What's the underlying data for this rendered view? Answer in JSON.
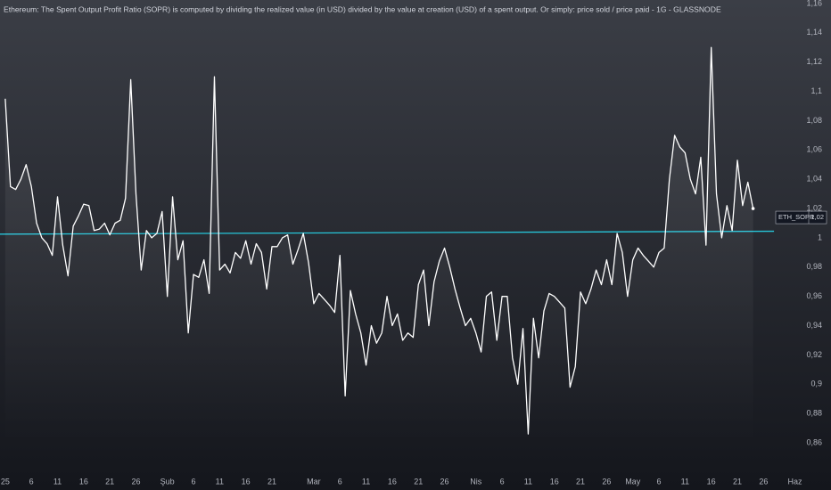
{
  "chart_data": {
    "type": "line",
    "title": "Ethereum: The Spent Output Profit Ratio (SOPR) is computed by dividing the realized value (in USD) divided by the value at creation (USD) of a spent output. Or simply: price sold / price paid - 1G - GLASSNODE",
    "x": [
      0,
      1,
      2,
      3,
      4,
      5,
      6,
      7,
      8,
      9,
      10,
      11,
      12,
      13,
      14,
      15,
      16,
      17,
      18,
      19,
      20,
      21,
      22,
      23,
      24,
      25,
      26,
      27,
      28,
      29,
      30,
      31,
      32,
      33,
      34,
      35,
      36,
      37,
      38,
      39,
      40,
      41,
      42,
      43,
      44,
      45,
      46,
      47,
      48,
      49,
      50,
      51,
      52,
      53,
      54,
      55,
      56,
      57,
      58,
      59,
      60,
      61,
      62,
      63,
      64,
      65,
      66,
      67,
      68,
      69,
      70,
      71,
      72,
      73,
      74,
      75,
      76,
      77,
      78,
      79,
      80,
      81,
      82,
      83,
      84,
      85,
      86,
      87,
      88,
      89,
      90,
      91,
      92,
      93,
      94,
      95,
      96,
      97,
      98,
      99,
      100,
      101,
      102,
      103,
      104,
      105,
      106,
      107,
      108,
      109,
      110,
      111,
      112,
      113,
      114,
      115,
      116,
      117,
      118,
      119,
      120,
      121,
      122,
      123,
      124,
      125,
      126,
      127,
      128,
      129,
      130,
      131,
      132,
      133,
      134,
      135,
      136,
      137,
      138,
      139,
      140,
      141,
      142,
      143
    ],
    "series": [
      {
        "name": "ETH_SOPR",
        "color": "#ffffff",
        "last_value_label": "1,02",
        "values": [
          1.095,
          1.035,
          1.033,
          1.04,
          1.05,
          1.035,
          1.01,
          1.0,
          0.996,
          0.988,
          1.028,
          0.995,
          0.974,
          1.008,
          1.015,
          1.023,
          1.022,
          1.005,
          1.006,
          1.01,
          1.002,
          1.01,
          1.012,
          1.027,
          1.108,
          1.03,
          0.978,
          1.005,
          1.0,
          1.003,
          1.018,
          0.96,
          1.028,
          0.985,
          0.998,
          0.935,
          0.975,
          0.973,
          0.985,
          0.962,
          1.11,
          0.978,
          0.982,
          0.976,
          0.99,
          0.986,
          0.998,
          0.982,
          0.996,
          0.99,
          0.965,
          0.994,
          0.994,
          1.0,
          1.002,
          0.982,
          0.992,
          1.003,
          0.983,
          0.955,
          0.962,
          0.958,
          0.954,
          0.949,
          0.988,
          0.892,
          0.964,
          0.948,
          0.935,
          0.913,
          0.94,
          0.928,
          0.935,
          0.96,
          0.94,
          0.948,
          0.93,
          0.935,
          0.932,
          0.968,
          0.978,
          0.94,
          0.97,
          0.984,
          0.993,
          0.98,
          0.965,
          0.952,
          0.94,
          0.945,
          0.935,
          0.922,
          0.96,
          0.963,
          0.93,
          0.96,
          0.96,
          0.918,
          0.9,
          0.938,
          0.866,
          0.945,
          0.918,
          0.95,
          0.962,
          0.96,
          0.956,
          0.952,
          0.898,
          0.912,
          0.963,
          0.955,
          0.965,
          0.978,
          0.968,
          0.985,
          0.968,
          1.003,
          0.99,
          0.96,
          0.985,
          0.993,
          0.988,
          0.984,
          0.98,
          0.99,
          0.993,
          1.04,
          1.07,
          1.062,
          1.058,
          1.04,
          1.03,
          1.055,
          0.995,
          1.13,
          1.03,
          1.0,
          1.022,
          1.005,
          1.053,
          1.022,
          1.038,
          1.02
        ]
      }
    ],
    "reference_line": {
      "x": [
        -1,
        147
      ],
      "values": [
        1.0025,
        1.0045
      ],
      "color": "#26c6da"
    },
    "xlim": [
      -1,
      157.9
    ],
    "xticks": [
      {
        "value": 0,
        "label": "25"
      },
      {
        "value": 5,
        "label": "6"
      },
      {
        "value": 10,
        "label": "11"
      },
      {
        "value": 15,
        "label": "16"
      },
      {
        "value": 20,
        "label": "21"
      },
      {
        "value": 25,
        "label": "26"
      },
      {
        "value": 31,
        "label": "Şub"
      },
      {
        "value": 36,
        "label": "6"
      },
      {
        "value": 41,
        "label": "11"
      },
      {
        "value": 46,
        "label": "16"
      },
      {
        "value": 51,
        "label": "21"
      },
      {
        "value": 59,
        "label": "Mar"
      },
      {
        "value": 64,
        "label": "6"
      },
      {
        "value": 69,
        "label": "11"
      },
      {
        "value": 74,
        "label": "16"
      },
      {
        "value": 79,
        "label": "21"
      },
      {
        "value": 84,
        "label": "26"
      },
      {
        "value": 90,
        "label": "Nis"
      },
      {
        "value": 95,
        "label": "6"
      },
      {
        "value": 100,
        "label": "11"
      },
      {
        "value": 105,
        "label": "16"
      },
      {
        "value": 110,
        "label": "21"
      },
      {
        "value": 115,
        "label": "26"
      },
      {
        "value": 120,
        "label": "May"
      },
      {
        "value": 125,
        "label": "6"
      },
      {
        "value": 130,
        "label": "11"
      },
      {
        "value": 135,
        "label": "16"
      },
      {
        "value": 140,
        "label": "21"
      },
      {
        "value": 145,
        "label": "26"
      },
      {
        "value": 151,
        "label": "Haz"
      }
    ],
    "ylim": [
      0.8575,
      1.1625
    ],
    "yticks": [
      {
        "value": 0.86,
        "label": "0,86"
      },
      {
        "value": 0.88,
        "label": "0,88"
      },
      {
        "value": 0.9,
        "label": "0,9"
      },
      {
        "value": 0.92,
        "label": "0,92"
      },
      {
        "value": 0.94,
        "label": "0,94"
      },
      {
        "value": 0.96,
        "label": "0,96"
      },
      {
        "value": 0.98,
        "label": "0,98"
      },
      1,
      {
        "value": 1.02,
        "label": "1,02"
      },
      {
        "value": 1.04,
        "label": "1,04"
      },
      {
        "value": 1.06,
        "label": "1,06"
      },
      {
        "value": 1.08,
        "label": "1,08"
      },
      {
        "value": 1.1,
        "label": "1,1"
      },
      {
        "value": 1.12,
        "label": "1,12"
      },
      {
        "value": 1.14,
        "label": "1,14"
      },
      {
        "value": 1.16,
        "label": "1,16"
      }
    ],
    "grid": false
  }
}
